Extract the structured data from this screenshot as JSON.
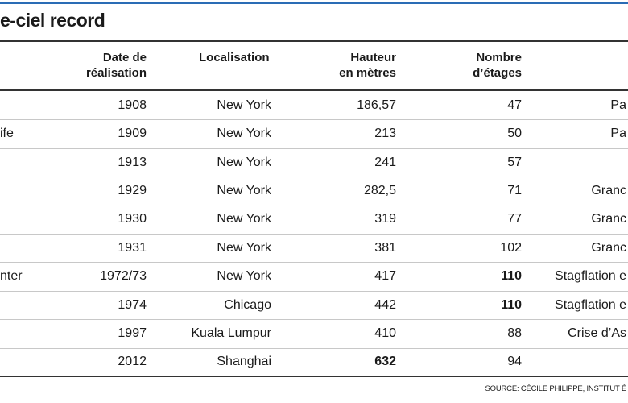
{
  "table": {
    "title": "e-ciel record",
    "headers": {
      "date": "Date de\nréalisation",
      "location": "Localisation",
      "height": "Hauteur\nen mètres",
      "floors": "Nombre\nd’étages"
    },
    "rows": [
      {
        "date": "1908",
        "location": "New York",
        "height": "186,57",
        "floors": "47",
        "context": "Pa"
      },
      {
        "name": "ife",
        "date": "1909",
        "location": "New York",
        "height": "213",
        "floors": "50",
        "context": "Pa"
      },
      {
        "date": "1913",
        "location": "New York",
        "height": "241",
        "floors": "57"
      },
      {
        "date": "1929",
        "location": "New York",
        "height": "282,5",
        "floors": "71",
        "context": "Granc"
      },
      {
        "date": "1930",
        "location": "New York",
        "height": "319",
        "floors": "77",
        "context": "Granc"
      },
      {
        "date": "1931",
        "location": "New York",
        "height": "381",
        "floors": "102",
        "context": "Granc"
      },
      {
        "name": "nter",
        "date": "1972/73",
        "location": "New York",
        "height": "417",
        "floors": "110",
        "context": "Stagflation e",
        "bold": [
          "floors"
        ]
      },
      {
        "date": "1974",
        "location": "Chicago",
        "height": "442",
        "floors": "110",
        "context": "Stagflation e",
        "bold": [
          "floors"
        ]
      },
      {
        "date": "1997",
        "location": "Kuala Lumpur",
        "height": "410",
        "floors": "88",
        "context": "Crise d’As"
      },
      {
        "date": "2012",
        "location": "Shanghai",
        "height": "632",
        "floors": "94",
        "bold": [
          "height"
        ]
      }
    ],
    "source": "SOURCE: CÉCILE PHILIPPE, INSTITUT É"
  }
}
